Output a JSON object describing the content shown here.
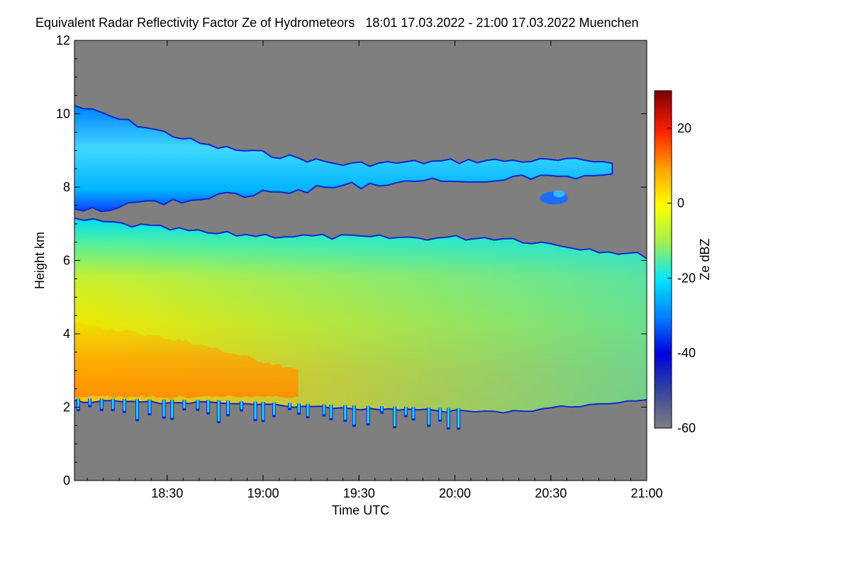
{
  "chart_data": {
    "type": "heatmap",
    "title": "Equivalent Radar Reflectivity Factor Ze of Hydrometeors",
    "subtitle": "18:01 17.03.2022 - 21:00 17.03.2022 Muenchen",
    "xlabel": "Time UTC",
    "ylabel": "Height km",
    "colorbar_label": "Ze dBZ",
    "x_range_minutes": [
      0,
      179
    ],
    "x_tick_minutes": [
      29,
      59,
      89,
      119,
      149,
      179
    ],
    "x_tick_labels": [
      "18:30",
      "19:00",
      "19:30",
      "20:00",
      "20:30",
      "21:00"
    ],
    "y_range": [
      0,
      12
    ],
    "y_ticks": [
      0,
      2,
      4,
      6,
      8,
      10,
      12
    ],
    "y_tick_labels": [
      "0",
      "2",
      "4",
      "6",
      "8",
      "10",
      "12"
    ],
    "colorbar_range": [
      -60,
      30
    ],
    "colorbar_ticks": [
      20,
      0,
      -20,
      -40,
      -60
    ],
    "colorbar_tick_labels": [
      "20",
      "0",
      "-20",
      "-40",
      "-60"
    ],
    "colormap": [
      "#7f7f7f",
      "#0000c8",
      "#0050ff",
      "#00c8ff",
      "#00e6e6",
      "#b4f040",
      "#ffff00",
      "#ffb400",
      "#ff6400",
      "#ff0000",
      "#8b0000"
    ],
    "background_color": "#7f7f7f",
    "layers": [
      {
        "name": "cirrus",
        "x_start": 0,
        "x_end": 168,
        "base_km": [
          7.4,
          7.8,
          8.1,
          8.3,
          8.4
        ],
        "top_km": [
          10.2,
          9.1,
          8.6,
          8.7,
          8.7
        ],
        "ze_dbz": -30
      },
      {
        "name": "stratiform",
        "x_start": 0,
        "x_end": 179,
        "base_km": [
          2.2,
          2.15,
          2.0,
          1.9,
          2.25
        ],
        "top_km": [
          7.1,
          6.7,
          6.6,
          6.6,
          6.1
        ],
        "ze_dbz": -8
      },
      {
        "name": "core",
        "x_start": 0,
        "x_end": 70,
        "base_km": [
          2.3,
          2.3,
          2.3
        ],
        "top_km": [
          4.3,
          3.8,
          3.0
        ],
        "ze_dbz": 2
      }
    ]
  }
}
